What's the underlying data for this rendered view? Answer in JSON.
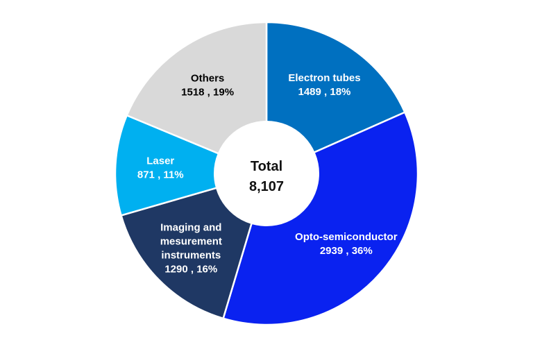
{
  "chart_data": {
    "type": "pie",
    "style": "donut",
    "title": "",
    "center_label": {
      "title": "Total",
      "value": "8,107"
    },
    "slices": [
      {
        "label": "Electron tubes",
        "value": 1489,
        "percent_text": "18%",
        "value_text": "1489 , 18%",
        "color": "#0070C0",
        "text_color": "#ffffff",
        "label_lines": [
          "Electron tubes"
        ]
      },
      {
        "label": "Opto-semiconductor",
        "value": 2939,
        "percent_text": "36%",
        "value_text": "2939 , 36%",
        "color": "#0A22F0",
        "text_color": "#ffffff",
        "label_lines": [
          "Opto-semiconductor"
        ]
      },
      {
        "label": "Imaging and mesurement instruments",
        "value": 1290,
        "percent_text": "16%",
        "value_text": "1290 , 16%",
        "color": "#1F3864",
        "text_color": "#ffffff",
        "label_lines": [
          "Imaging and",
          "mesurement",
          "instruments"
        ]
      },
      {
        "label": "Laser",
        "value": 871,
        "percent_text": "11%",
        "value_text": "871 , 11%",
        "color": "#00B0F0",
        "text_color": "#ffffff",
        "label_lines": [
          "Laser"
        ]
      },
      {
        "label": "Others",
        "value": 1518,
        "percent_text": "19%",
        "value_text": "1518 , 19%",
        "color": "#D9D9D9",
        "text_color": "#000000",
        "label_lines": [
          "Others"
        ]
      }
    ],
    "total": 8107
  }
}
